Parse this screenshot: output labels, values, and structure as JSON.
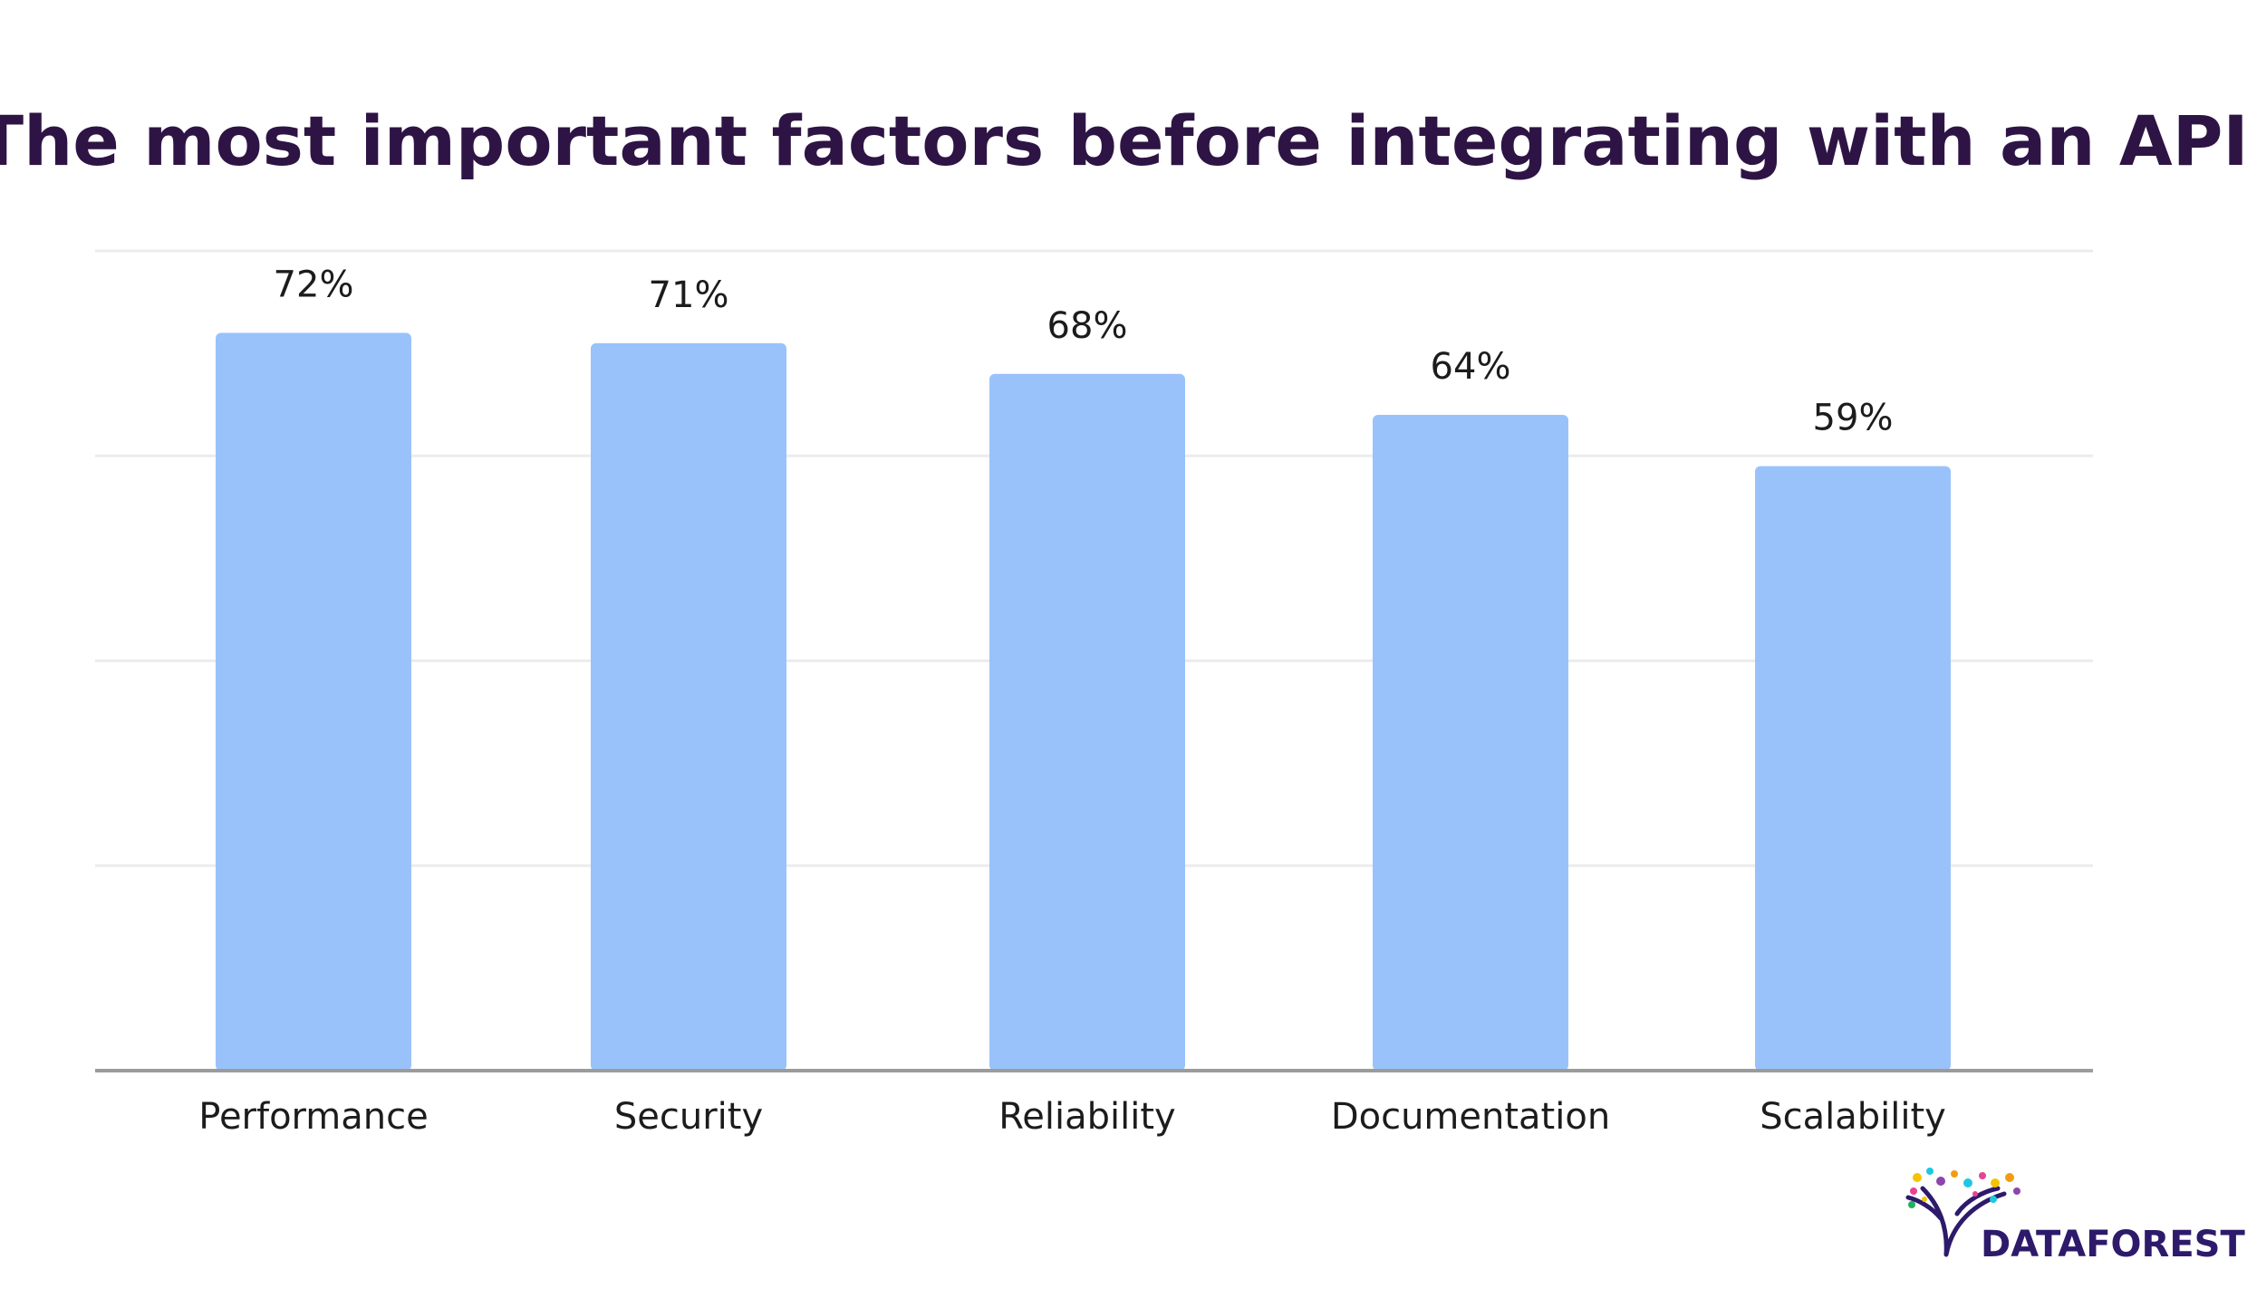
{
  "chart_data": {
    "type": "bar",
    "title": "The most important factors before integrating with an API",
    "categories": [
      "Performance",
      "Security",
      "Reliability",
      "Documentation",
      "Scalability"
    ],
    "values": [
      72,
      71,
      68,
      64,
      59
    ],
    "value_labels": [
      "72%",
      "71%",
      "68%",
      "64%",
      "59%"
    ],
    "ylim": [
      0,
      80
    ],
    "grid": true,
    "legend": "none",
    "colors": {
      "bar": "#99c2fb",
      "title": "#2e1445",
      "gridline": "#ececec",
      "axis": "#9b9b9b"
    }
  },
  "branding": {
    "name": "DATAFOREST",
    "icon": "tree-logo-icon"
  }
}
